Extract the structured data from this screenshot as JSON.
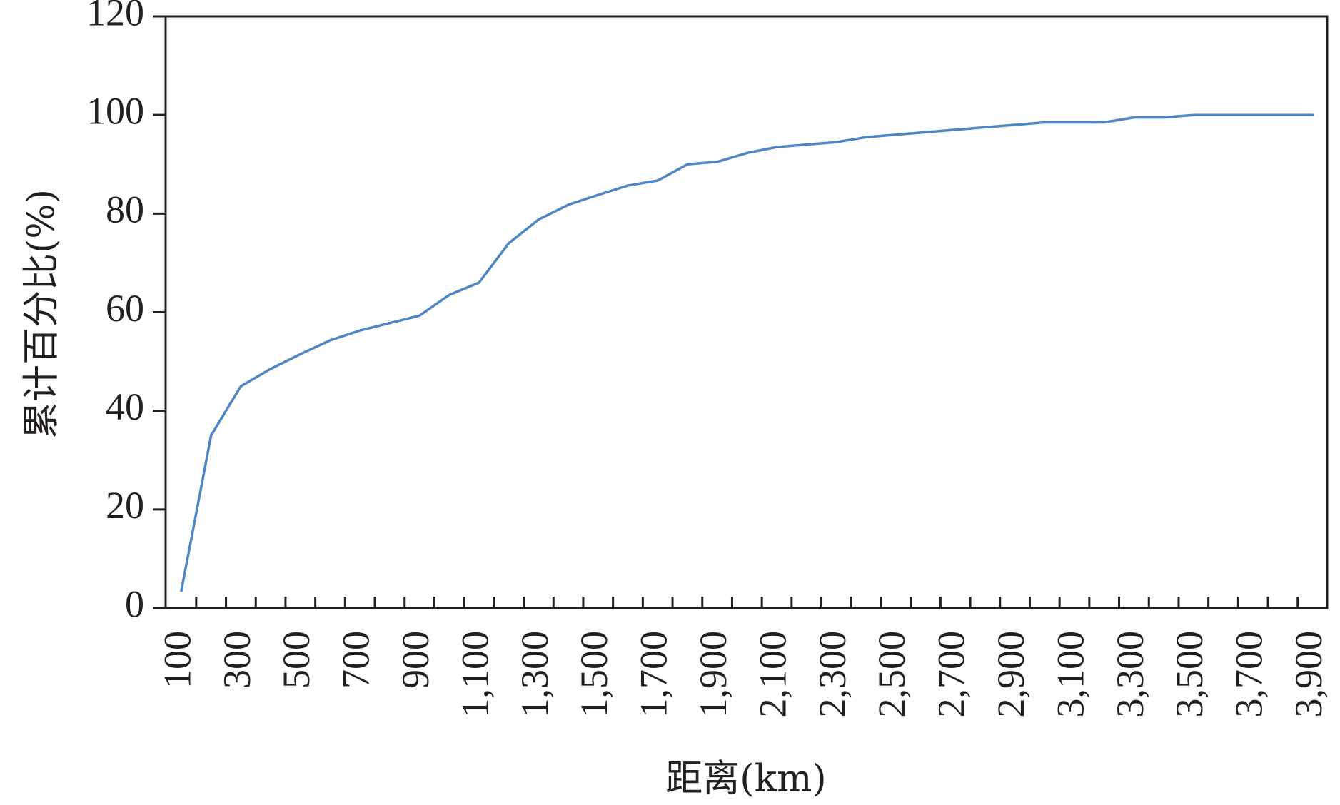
{
  "chart_data": {
    "type": "line",
    "xlabel": "距离(km)",
    "ylabel": "累计百分比(%)",
    "ylim": [
      0,
      120
    ],
    "y_ticks": [
      0,
      20,
      40,
      60,
      80,
      100,
      120
    ],
    "y_tick_labels": [
      "0",
      "20",
      "40",
      "60",
      "80",
      "100",
      "120"
    ],
    "x_categories": [
      100,
      200,
      300,
      400,
      500,
      600,
      700,
      800,
      900,
      1000,
      1100,
      1200,
      1300,
      1400,
      1500,
      1600,
      1700,
      1800,
      1900,
      2000,
      2100,
      2200,
      2300,
      2400,
      2500,
      2600,
      2700,
      2800,
      2900,
      3000,
      3100,
      3200,
      3300,
      3400,
      3500,
      3600,
      3700,
      3800,
      3900
    ],
    "x_tick_labels": [
      "100",
      "300",
      "500",
      "700",
      "900",
      "1,100",
      "1,300",
      "1,500",
      "1,700",
      "1,900",
      "2,100",
      "2,300",
      "2,500",
      "2,700",
      "2,900",
      "3,100",
      "3,300",
      "3,500",
      "3,700",
      "3,900"
    ],
    "series": [
      {
        "values": [
          3.5,
          35,
          45,
          48.5,
          51.5,
          54.3,
          56.3,
          57.8,
          59.3,
          63.5,
          66,
          74,
          78.8,
          81.8,
          83.8,
          85.7,
          86.7,
          90,
          90.5,
          92.3,
          93.5,
          94,
          94.5,
          95.5,
          96,
          96.5,
          97,
          97.5,
          98,
          98.5,
          98.5,
          98.5,
          99.5,
          99.5,
          100,
          100,
          100,
          100,
          100
        ]
      }
    ],
    "line_color": "#4e86c5",
    "axis_color": "#231f20",
    "grid": false,
    "legend": "none"
  }
}
